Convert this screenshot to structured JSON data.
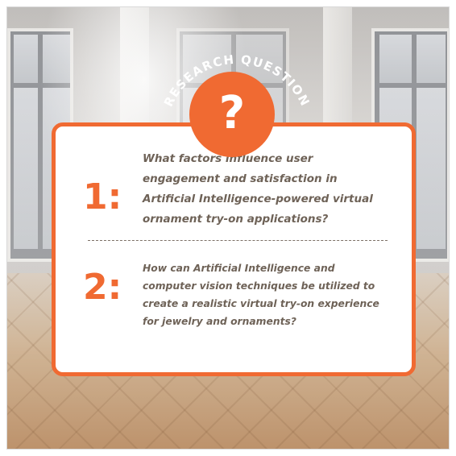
{
  "header": {
    "label": "RESEARCH QUESTION",
    "icon_symbol": "?"
  },
  "questions": [
    {
      "number": "1:",
      "text": "What factors influence user engagement and satisfaction in Artificial Intelligence-powered virtual ornament try-on applications?"
    },
    {
      "number": "2:",
      "text": "How can Artificial Intelligence and computer vision techniques be utilized to create a realistic virtual try-on experience for jewelry and ornaments?"
    }
  ],
  "colors": {
    "accent": "#f06a32",
    "text": "#6e6257",
    "card_background": "#ffffff"
  }
}
